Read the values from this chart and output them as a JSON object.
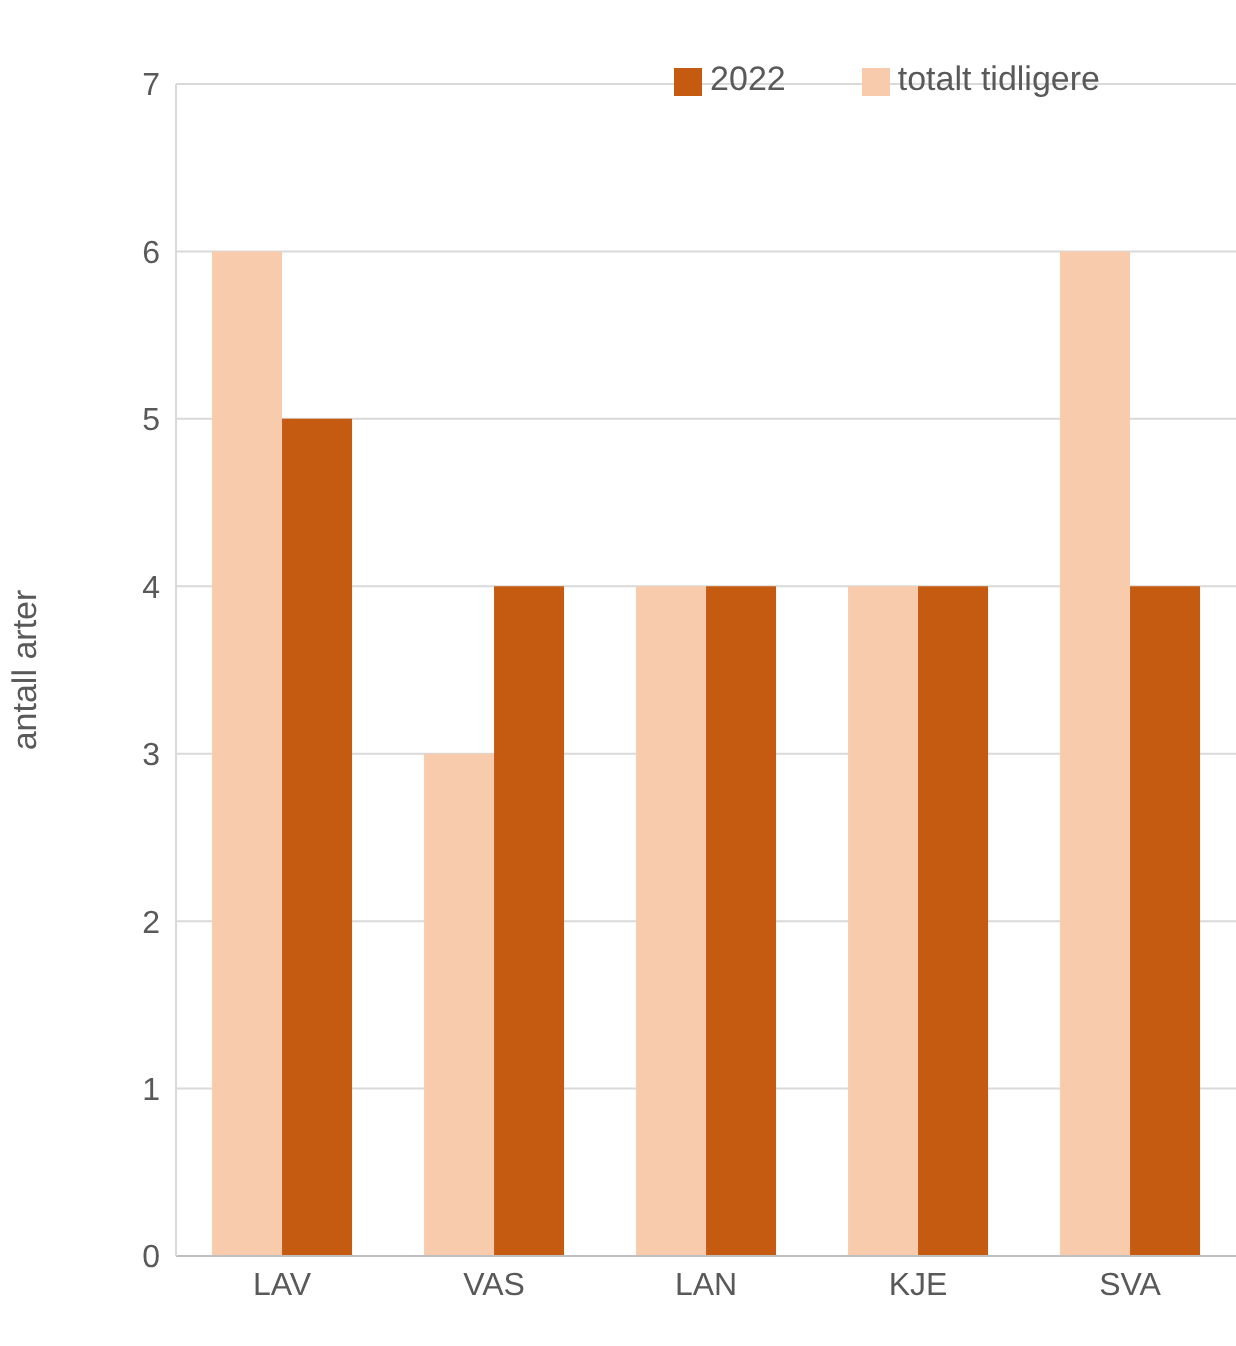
{
  "chart_data": {
    "type": "bar",
    "ylabel": "antall arter",
    "categories": [
      "LAV",
      "VAS",
      "LAN",
      "KJE",
      "SVA"
    ],
    "series": [
      {
        "name": "totalt tidligere",
        "color": "#f8cbad",
        "values": [
          6,
          3,
          4,
          4,
          6
        ]
      },
      {
        "name": "2022",
        "color": "#c55a11",
        "values": [
          5,
          4,
          4,
          4,
          4
        ]
      }
    ],
    "ylim": [
      0,
      7
    ],
    "yticks": [
      0,
      1,
      2,
      3,
      4,
      5,
      6,
      7
    ],
    "grid": "y",
    "legend": "top right"
  }
}
